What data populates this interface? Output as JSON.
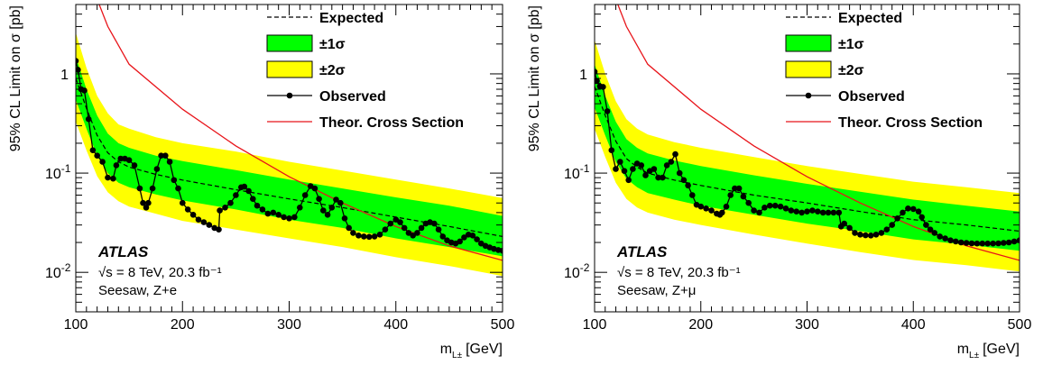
{
  "chart_data": [
    {
      "type": "line",
      "panel": "left",
      "xlabel": "m",
      "xlabel_sub": "L±",
      "xlabel_unit": "[GeV]",
      "ylabel": "95% CL Limit on σ [pb]",
      "xlim": [
        100,
        500
      ],
      "ylim": [
        0.004,
        5
      ],
      "yscale": "log",
      "x_ticks": [
        "100",
        "200",
        "300",
        "400",
        "500"
      ],
      "y_ticks": [
        {
          "base": "10",
          "exp": "-2",
          "value": 0.01
        },
        {
          "base": "10",
          "exp": "-1",
          "value": 0.1
        },
        {
          "base": "1",
          "exp": "",
          "value": 1
        }
      ],
      "legend": [
        "Expected",
        "±1σ",
        "±2σ",
        "Observed",
        "Theor. Cross Section"
      ],
      "legend_position": "top-right",
      "annotations": [
        "ATLAS",
        "√s = 8 TeV, 20.3 fb⁻¹",
        "Seesaw, Z+e"
      ],
      "series": [
        {
          "name": "Expected",
          "style": "dashed",
          "x": [
            100,
            110,
            120,
            130,
            140,
            150,
            175,
            200,
            250,
            300,
            350,
            400,
            450,
            500
          ],
          "y": [
            0.9,
            0.45,
            0.24,
            0.16,
            0.13,
            0.115,
            0.097,
            0.085,
            0.068,
            0.055,
            0.045,
            0.036,
            0.029,
            0.023
          ]
        },
        {
          "name": "±1σ",
          "band": true,
          "x": [
            100,
            110,
            120,
            130,
            140,
            150,
            175,
            200,
            250,
            300,
            350,
            400,
            450,
            500
          ],
          "low": [
            0.55,
            0.28,
            0.15,
            0.1,
            0.08,
            0.072,
            0.061,
            0.053,
            0.043,
            0.034,
            0.028,
            0.022,
            0.018,
            0.0145
          ],
          "high": [
            1.5,
            0.7,
            0.38,
            0.25,
            0.2,
            0.18,
            0.15,
            0.132,
            0.107,
            0.086,
            0.07,
            0.057,
            0.047,
            0.037
          ]
        },
        {
          "name": "±2σ",
          "band": true,
          "x": [
            100,
            110,
            120,
            130,
            140,
            150,
            175,
            200,
            250,
            300,
            350,
            400,
            450,
            500
          ],
          "low": [
            0.33,
            0.17,
            0.093,
            0.064,
            0.052,
            0.046,
            0.039,
            0.033,
            0.027,
            0.022,
            0.018,
            0.0142,
            0.0116,
            0.0092
          ],
          "high": [
            2.6,
            1.15,
            0.6,
            0.4,
            0.31,
            0.28,
            0.23,
            0.2,
            0.165,
            0.13,
            0.106,
            0.086,
            0.07,
            0.056
          ]
        },
        {
          "name": "Observed",
          "markers": true,
          "x": [
            100,
            102,
            105,
            108,
            112,
            116,
            120,
            125,
            130,
            135,
            138,
            142,
            146,
            150,
            155,
            160,
            163,
            166,
            168,
            172,
            176,
            180,
            184,
            188,
            192,
            196,
            200,
            205,
            210,
            215,
            220,
            225,
            230,
            234,
            235,
            240,
            245,
            250,
            255,
            258,
            262,
            266,
            270,
            275,
            280,
            285,
            290,
            295,
            300,
            305,
            310,
            315,
            320,
            324,
            328,
            332,
            336,
            340,
            344,
            348,
            352,
            356,
            360,
            365,
            370,
            375,
            380,
            385,
            390,
            395,
            400,
            404,
            408,
            412,
            416,
            420,
            424,
            428,
            432,
            436,
            440,
            444,
            448,
            452,
            456,
            460,
            464,
            468,
            472,
            476,
            480,
            484,
            488,
            492,
            496,
            500
          ],
          "y": [
            1.35,
            1.1,
            0.7,
            0.68,
            0.35,
            0.17,
            0.15,
            0.13,
            0.09,
            0.088,
            0.12,
            0.14,
            0.14,
            0.135,
            0.12,
            0.07,
            0.05,
            0.045,
            0.05,
            0.07,
            0.11,
            0.15,
            0.15,
            0.13,
            0.085,
            0.07,
            0.05,
            0.043,
            0.038,
            0.034,
            0.032,
            0.03,
            0.028,
            0.027,
            0.042,
            0.045,
            0.05,
            0.06,
            0.072,
            0.073,
            0.066,
            0.055,
            0.047,
            0.043,
            0.039,
            0.04,
            0.038,
            0.036,
            0.035,
            0.036,
            0.045,
            0.06,
            0.074,
            0.07,
            0.055,
            0.042,
            0.038,
            0.045,
            0.054,
            0.05,
            0.035,
            0.028,
            0.025,
            0.0235,
            0.023,
            0.0228,
            0.023,
            0.024,
            0.027,
            0.031,
            0.034,
            0.032,
            0.028,
            0.025,
            0.0235,
            0.025,
            0.028,
            0.031,
            0.032,
            0.031,
            0.027,
            0.023,
            0.021,
            0.02,
            0.0195,
            0.0205,
            0.0225,
            0.024,
            0.0235,
            0.0215,
            0.0195,
            0.0185,
            0.0178,
            0.0172,
            0.0168,
            0.0165
          ]
        },
        {
          "name": "Theor. Cross Section",
          "color": "#e8141a",
          "x": [
            100,
            130,
            150,
            200,
            250,
            300,
            350,
            400,
            450,
            500
          ],
          "y": [
            20,
            3.0,
            1.25,
            0.44,
            0.188,
            0.092,
            0.05,
            0.029,
            0.0185,
            0.0132
          ]
        }
      ]
    },
    {
      "type": "line",
      "panel": "right",
      "xlabel": "m",
      "xlabel_sub": "L±",
      "xlabel_unit": "[GeV]",
      "ylabel": "95% CL Limit on σ [pb]",
      "xlim": [
        100,
        500
      ],
      "ylim": [
        0.004,
        5
      ],
      "yscale": "log",
      "x_ticks": [
        "100",
        "200",
        "300",
        "400",
        "500"
      ],
      "y_ticks": [
        {
          "base": "10",
          "exp": "-2",
          "value": 0.01
        },
        {
          "base": "10",
          "exp": "-1",
          "value": 0.1
        },
        {
          "base": "1",
          "exp": "",
          "value": 1
        }
      ],
      "legend": [
        "Expected",
        "±1σ",
        "±2σ",
        "Observed",
        "Theor. Cross Section"
      ],
      "legend_position": "top-right",
      "annotations": [
        "ATLAS",
        "√s = 8 TeV, 20.3 fb⁻¹",
        "Seesaw, Z+μ"
      ],
      "series": [
        {
          "name": "Expected",
          "style": "dashed",
          "x": [
            100,
            110,
            120,
            130,
            140,
            150,
            175,
            200,
            250,
            300,
            350,
            400,
            450,
            500
          ],
          "y": [
            0.75,
            0.38,
            0.21,
            0.14,
            0.115,
            0.1,
            0.085,
            0.075,
            0.06,
            0.05,
            0.041,
            0.034,
            0.03,
            0.026
          ]
        },
        {
          "name": "±1σ",
          "band": true,
          "x": [
            100,
            110,
            120,
            130,
            140,
            150,
            175,
            200,
            250,
            300,
            350,
            400,
            450,
            500
          ],
          "low": [
            0.46,
            0.24,
            0.13,
            0.088,
            0.072,
            0.063,
            0.054,
            0.047,
            0.038,
            0.031,
            0.026,
            0.0215,
            0.019,
            0.0165
          ],
          "high": [
            1.25,
            0.6,
            0.33,
            0.22,
            0.18,
            0.158,
            0.134,
            0.118,
            0.095,
            0.078,
            0.065,
            0.054,
            0.047,
            0.041
          ]
        },
        {
          "name": "±2σ",
          "band": true,
          "x": [
            100,
            110,
            120,
            130,
            140,
            150,
            175,
            200,
            250,
            300,
            350,
            400,
            450,
            500
          ],
          "low": [
            0.28,
            0.145,
            0.08,
            0.055,
            0.045,
            0.04,
            0.034,
            0.03,
            0.024,
            0.0195,
            0.016,
            0.0133,
            0.0118,
            0.0102
          ],
          "high": [
            2.2,
            1.0,
            0.53,
            0.35,
            0.28,
            0.245,
            0.205,
            0.18,
            0.145,
            0.118,
            0.098,
            0.082,
            0.072,
            0.063
          ]
        },
        {
          "name": "Observed",
          "markers": true,
          "x": [
            100,
            102,
            105,
            108,
            112,
            116,
            120,
            124,
            128,
            132,
            136,
            140,
            144,
            148,
            152,
            156,
            160,
            164,
            168,
            172,
            176,
            180,
            184,
            188,
            192,
            196,
            200,
            205,
            210,
            215,
            218,
            220,
            224,
            228,
            232,
            236,
            240,
            245,
            250,
            255,
            260,
            265,
            270,
            275,
            280,
            285,
            290,
            295,
            300,
            305,
            310,
            315,
            320,
            325,
            330,
            332,
            335,
            340,
            345,
            350,
            355,
            360,
            365,
            370,
            375,
            380,
            385,
            390,
            395,
            400,
            405,
            408,
            412,
            416,
            420,
            425,
            430,
            435,
            440,
            445,
            450,
            455,
            460,
            465,
            470,
            475,
            480,
            485,
            490,
            495,
            500
          ],
          "y": [
            1.05,
            0.85,
            0.75,
            0.74,
            0.42,
            0.17,
            0.11,
            0.13,
            0.105,
            0.085,
            0.11,
            0.125,
            0.12,
            0.095,
            0.105,
            0.11,
            0.09,
            0.09,
            0.12,
            0.13,
            0.155,
            0.1,
            0.085,
            0.075,
            0.06,
            0.048,
            0.046,
            0.044,
            0.042,
            0.039,
            0.038,
            0.04,
            0.046,
            0.06,
            0.07,
            0.07,
            0.058,
            0.05,
            0.042,
            0.04,
            0.045,
            0.047,
            0.047,
            0.046,
            0.044,
            0.042,
            0.041,
            0.04,
            0.041,
            0.042,
            0.041,
            0.04,
            0.04,
            0.04,
            0.04,
            0.029,
            0.031,
            0.028,
            0.025,
            0.024,
            0.0236,
            0.0235,
            0.024,
            0.025,
            0.027,
            0.03,
            0.035,
            0.04,
            0.044,
            0.0435,
            0.041,
            0.036,
            0.03,
            0.027,
            0.025,
            0.023,
            0.022,
            0.021,
            0.0205,
            0.02,
            0.0198,
            0.0196,
            0.0195,
            0.0195,
            0.0195,
            0.0195,
            0.0196,
            0.0198,
            0.02,
            0.0205,
            0.021
          ]
        },
        {
          "name": "Theor. Cross Section",
          "color": "#e8141a",
          "x": [
            100,
            130,
            150,
            200,
            250,
            300,
            350,
            400,
            450,
            500
          ],
          "y": [
            20,
            3.0,
            1.25,
            0.44,
            0.188,
            0.092,
            0.05,
            0.029,
            0.0185,
            0.0132
          ]
        }
      ]
    }
  ]
}
